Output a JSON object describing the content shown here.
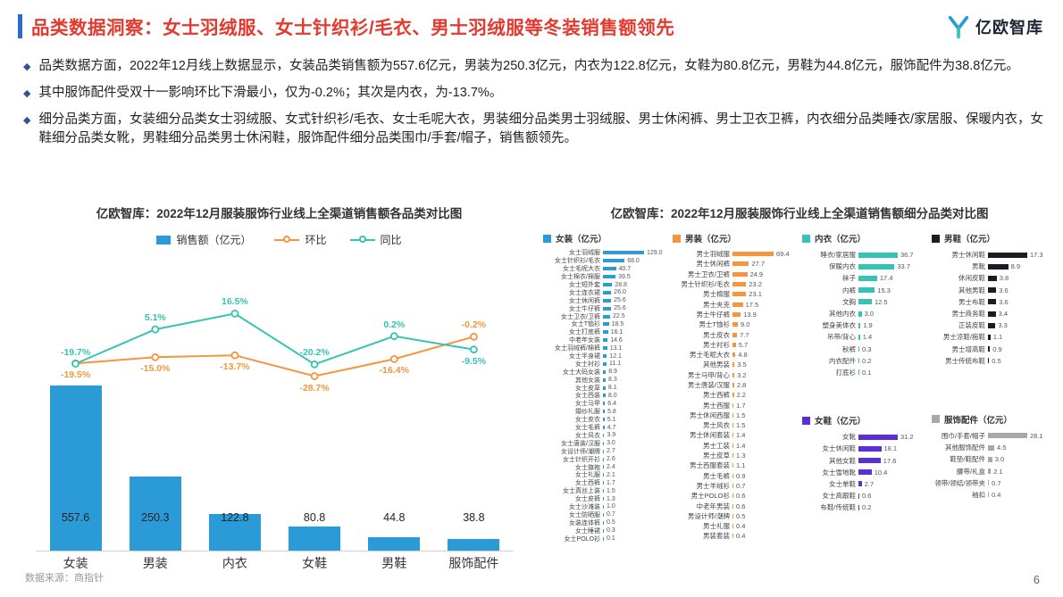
{
  "header": {
    "title": "品类数据洞察：女士羽绒服、女士针织衫/毛衣、男士羽绒服等冬装销售额领先",
    "logo_text": "亿欧智库"
  },
  "bullets": [
    "品类数据方面，2022年12月线上数据显示，女装品类销售额为557.6亿元，男装为250.3亿元，内衣为122.8亿元，女鞋为80.8亿元，男鞋为44.8亿元，服饰配件为38.8亿元。",
    "其中服饰配件受双十一影响环比下滑最小，仅为-0.2%；其次是内衣，为-13.7%。",
    "细分品类方面，女装细分品类女士羽绒服、女式针织衫/毛衣、女士毛呢大衣，男装细分品类男士羽绒服、男士休闲裤、男士卫衣卫裤，内衣细分品类睡衣/家居服、保暖内衣，女鞋细分品类女靴，男鞋细分品类男士休闲鞋，服饰配件细分品类围巾/手套/帽子，销售额领先。"
  ],
  "footer": {
    "source": "数据来源：商指针",
    "page": "6"
  },
  "colors": {
    "title_red": "#E33A2F",
    "accent_blue": "#2A6BD2",
    "bullet_blue": "#2F5496",
    "bar_blue": "#2B9BD7",
    "line_orange": "#F6953E",
    "line_teal": "#36C3B3",
    "purple": "#5B2FD6",
    "dark": "#1B1B24",
    "gray": "#A8A8A8"
  },
  "chart_data": [
    {
      "type": "bar+line",
      "title": "亿欧智库：2022年12月服装服饰行业线上全渠道销售额各品类对比图",
      "categories": [
        "女装",
        "男装",
        "内衣",
        "女鞋",
        "男鞋",
        "服饰配件"
      ],
      "bar_axis_max": 600,
      "line_axis_range": [
        -35,
        20
      ],
      "legend_position": "top",
      "grid": false,
      "bar_series": {
        "name": "销售额（亿元）",
        "color": "#2B9BD7",
        "values": [
          557.6,
          250.3,
          122.8,
          80.8,
          44.8,
          38.8
        ]
      },
      "line_series": [
        {
          "name": "环比",
          "color": "#F6953E",
          "values": [
            -19.5,
            -15.0,
            -13.7,
            -28.7,
            -16.4,
            -0.2
          ],
          "label_side": [
            "below",
            "below",
            "below",
            "below",
            "below",
            "above"
          ]
        },
        {
          "name": "同比",
          "color": "#36C3B3",
          "values": [
            -19.7,
            5.1,
            16.5,
            -20.2,
            0.2,
            -9.5
          ],
          "label_side": [
            "above",
            "above",
            "above",
            "above",
            "above",
            "below"
          ]
        }
      ]
    },
    {
      "type": "bar",
      "subtype": "horizontal-small-multiples",
      "title": "亿欧智库：2022年12月服装服饰行业线上全渠道销售额细分品类对比图",
      "charts": [
        {
          "name": "女装（亿元）",
          "color": "#2B9BD7",
          "items": [
            {
              "label": "女士羽绒服",
              "value": 129.0
            },
            {
              "label": "女士针织衫/毛衣",
              "value": 68.0
            },
            {
              "label": "女士毛呢大衣",
              "value": 40.7
            },
            {
              "label": "女士棉衣/棉服",
              "value": 39.5
            },
            {
              "label": "女士短外套",
              "value": 28.8
            },
            {
              "label": "女士连衣裙",
              "value": 26.0
            },
            {
              "label": "女士休闲裤",
              "value": 25.6
            },
            {
              "label": "女士牛仔裤",
              "value": 25.6
            },
            {
              "label": "女士卫衣/卫裤",
              "value": 22.5
            },
            {
              "label": "女士T恤衫",
              "value": 18.5
            },
            {
              "label": "女士打底裤",
              "value": 16.1
            },
            {
              "label": "中老年女装",
              "value": 14.6
            },
            {
              "label": "女士羽绒裤/棉裤",
              "value": 13.1
            },
            {
              "label": "女士半身裙",
              "value": 12.1
            },
            {
              "label": "女士衬衫",
              "value": 11.1
            },
            {
              "label": "女士大码女装",
              "value": 8.9
            },
            {
              "label": "其他女装",
              "value": 8.3
            },
            {
              "label": "女士皮草",
              "value": 8.1
            },
            {
              "label": "女士西装",
              "value": 8.0
            },
            {
              "label": "女士马甲",
              "value": 6.4
            },
            {
              "label": "婚纱礼服",
              "value": 5.8
            },
            {
              "label": "女士皮衣",
              "value": 5.1
            },
            {
              "label": "女士毛裤",
              "value": 4.7
            },
            {
              "label": "女士风衣",
              "value": 3.9
            },
            {
              "label": "女士唐装/汉服",
              "value": 3.0
            },
            {
              "label": "女设计师/潮牌",
              "value": 2.7
            },
            {
              "label": "女士针织开衫",
              "value": 2.6
            },
            {
              "label": "女士旗袍",
              "value": 2.4
            },
            {
              "label": "女士礼服",
              "value": 2.1
            },
            {
              "label": "女士西裤",
              "value": 1.7
            },
            {
              "label": "女士真丝上装",
              "value": 1.5
            },
            {
              "label": "女士皮裤",
              "value": 1.3
            },
            {
              "label": "女士沙滩装",
              "value": 1.0
            },
            {
              "label": "女士防晒服",
              "value": 0.7
            },
            {
              "label": "女装连体裤",
              "value": 0.5
            },
            {
              "label": "女士睡裙",
              "value": 0.3
            },
            {
              "label": "女士POLO衫",
              "value": 0.1
            }
          ]
        },
        {
          "name": "男装（亿元）",
          "color": "#F6953E",
          "items": [
            {
              "label": "男士羽绒服",
              "value": 69.4
            },
            {
              "label": "男士休闲裤",
              "value": 27.7
            },
            {
              "label": "男士卫衣/卫裤",
              "value": 24.9
            },
            {
              "label": "男士针织衫/毛衣",
              "value": 23.2
            },
            {
              "label": "男士棉服",
              "value": 23.1
            },
            {
              "label": "男士夹克",
              "value": 17.5
            },
            {
              "label": "男士牛仔裤",
              "value": 13.9
            },
            {
              "label": "男士T恤衫",
              "value": 9.0
            },
            {
              "label": "男士皮衣",
              "value": 7.7
            },
            {
              "label": "男士衬衫",
              "value": 5.7
            },
            {
              "label": "男士毛呢大衣",
              "value": 4.8
            },
            {
              "label": "其他男装",
              "value": 3.5
            },
            {
              "label": "男士马甲/背心",
              "value": 3.2
            },
            {
              "label": "男士唐装/汉服",
              "value": 2.8
            },
            {
              "label": "男士西裤",
              "value": 2.2
            },
            {
              "label": "男士西服",
              "value": 1.7
            },
            {
              "label": "男士休闲西服",
              "value": 1.5
            },
            {
              "label": "男士风衣",
              "value": 1.5
            },
            {
              "label": "男士休闲套装",
              "value": 1.4
            },
            {
              "label": "男士工装",
              "value": 1.4
            },
            {
              "label": "男士皮草",
              "value": 1.3
            },
            {
              "label": "男士西服套装",
              "value": 1.1
            },
            {
              "label": "男士毛裤",
              "value": 0.9
            },
            {
              "label": "男士羊绒衫",
              "value": 0.7
            },
            {
              "label": "男士POLO衫",
              "value": 0.6
            },
            {
              "label": "中老年男装",
              "value": 0.6
            },
            {
              "label": "男设计师/潮牌",
              "value": 0.5
            },
            {
              "label": "男士礼服",
              "value": 0.4
            },
            {
              "label": "男装套装",
              "value": 0.4
            }
          ]
        },
        {
          "name": "内衣（亿元）",
          "color": "#36C3B3",
          "items": [
            {
              "label": "睡衣/家居服",
              "value": 36.7
            },
            {
              "label": "保暖内衣",
              "value": 33.7
            },
            {
              "label": "袜子",
              "value": 17.4
            },
            {
              "label": "内裤",
              "value": 15.3
            },
            {
              "label": "文胸",
              "value": 12.5
            },
            {
              "label": "其他内衣",
              "value": 3.0
            },
            {
              "label": "塑身美体衣",
              "value": 1.9
            },
            {
              "label": "吊带/背心",
              "value": 1.4
            },
            {
              "label": "秋裤",
              "value": 0.3
            },
            {
              "label": "内衣配件",
              "value": 0.2
            },
            {
              "label": "打底衫",
              "value": 0.1
            }
          ]
        },
        {
          "name": "女鞋（亿元）",
          "color": "#5B2FD6",
          "items": [
            {
              "label": "女靴",
              "value": 31.2
            },
            {
              "label": "女士休闲鞋",
              "value": 18.1
            },
            {
              "label": "其他女鞋",
              "value": 17.6
            },
            {
              "label": "女士雪地靴",
              "value": 10.4
            },
            {
              "label": "女士单鞋",
              "value": 2.7
            },
            {
              "label": "女士高跟鞋",
              "value": 0.6
            },
            {
              "label": "布鞋/传统鞋",
              "value": 0.2
            }
          ]
        },
        {
          "name": "男鞋（亿元）",
          "color": "#1B1B24",
          "items": [
            {
              "label": "男士休闲鞋",
              "value": 17.3
            },
            {
              "label": "男靴",
              "value": 8.9
            },
            {
              "label": "休闲皮鞋",
              "value": 3.8
            },
            {
              "label": "其他男鞋",
              "value": 3.6
            },
            {
              "label": "男士布鞋",
              "value": 3.6
            },
            {
              "label": "男士商务鞋",
              "value": 3.4
            },
            {
              "label": "正装皮鞋",
              "value": 3.3
            },
            {
              "label": "男士凉鞋/拖鞋",
              "value": 1.1
            },
            {
              "label": "男士增高鞋",
              "value": 0.9
            },
            {
              "label": "男士传统布鞋",
              "value": 0.5
            }
          ]
        },
        {
          "name": "服饰配件（亿元）",
          "color": "#A8A8A8",
          "items": [
            {
              "label": "围巾/手套/帽子",
              "value": 28.1
            },
            {
              "label": "其他服饰配件",
              "value": 4.5
            },
            {
              "label": "鞋垫/鞋配件",
              "value": 3.0
            },
            {
              "label": "腰带/礼盒",
              "value": 2.1
            },
            {
              "label": "领带/领结/领带夹",
              "value": 0.7
            },
            {
              "label": "袖扣",
              "value": 0.4
            }
          ]
        }
      ]
    }
  ]
}
